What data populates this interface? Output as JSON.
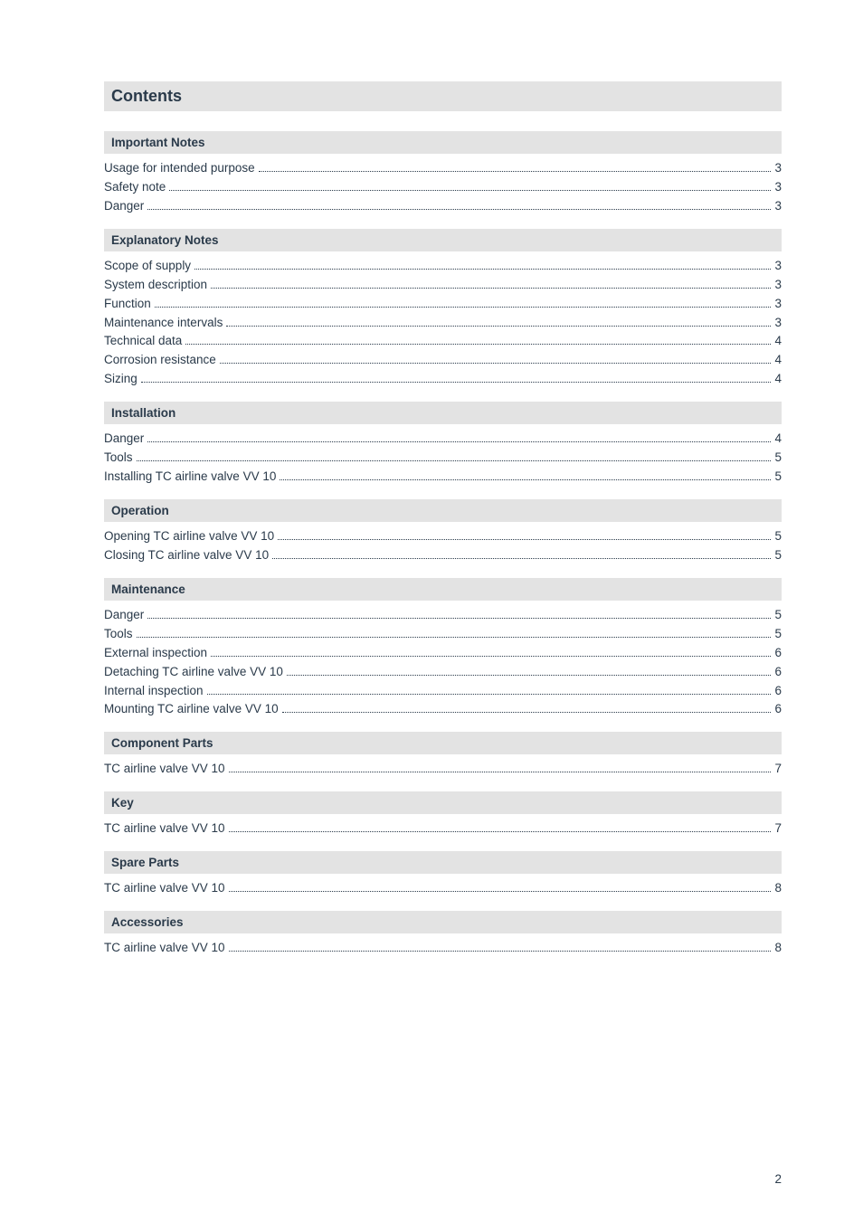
{
  "page": {
    "title": "Contents",
    "pageNumber": "2"
  },
  "theme": {
    "sectionHeaderBg": "#e3e3e3",
    "titleBg": "#e3e3e3",
    "textColor": "#2a3a4a",
    "fontSizeBody": 13.5,
    "fontSizeTitle": 18,
    "lineHeight": 1.55
  },
  "sections": [
    {
      "title": "Important Notes",
      "entries": [
        {
          "label": "Usage for intended purpose",
          "page": "3"
        },
        {
          "label": "Safety note",
          "page": "3"
        },
        {
          "label": "Danger",
          "page": "3"
        }
      ]
    },
    {
      "title": "Explanatory Notes",
      "entries": [
        {
          "label": "Scope of supply",
          "page": "3"
        },
        {
          "label": "System description",
          "page": "3"
        },
        {
          "label": "Function",
          "page": "3"
        },
        {
          "label": "Maintenance intervals",
          "page": "3"
        },
        {
          "label": "Technical data",
          "page": "4"
        },
        {
          "label": "Corrosion resistance",
          "page": "4"
        },
        {
          "label": "Sizing",
          "page": "4"
        }
      ]
    },
    {
      "title": "Installation",
      "entries": [
        {
          "label": "Danger",
          "page": "4"
        },
        {
          "label": "Tools",
          "page": "5"
        },
        {
          "label": "Installing TC airline valve VV 10",
          "page": "5"
        }
      ]
    },
    {
      "title": "Operation",
      "entries": [
        {
          "label": "Opening TC airline valve VV 10",
          "page": "5"
        },
        {
          "label": "Closing TC airline valve VV 10",
          "page": "5"
        }
      ]
    },
    {
      "title": "Maintenance",
      "entries": [
        {
          "label": "Danger",
          "page": "5"
        },
        {
          "label": "Tools",
          "page": "5"
        },
        {
          "label": "External inspection",
          "page": "6"
        },
        {
          "label": "Detaching TC airline valve VV 10",
          "page": "6"
        },
        {
          "label": "Internal inspection",
          "page": "6"
        },
        {
          "label": "Mounting TC airline valve VV 10",
          "page": "6"
        }
      ]
    },
    {
      "title": "Component Parts",
      "entries": [
        {
          "label": "TC airline valve VV 10",
          "page": "7"
        }
      ]
    },
    {
      "title": "Key",
      "entries": [
        {
          "label": "TC airline valve VV 10",
          "page": "7"
        }
      ]
    },
    {
      "title": "Spare Parts",
      "entries": [
        {
          "label": "TC airline valve VV 10",
          "page": "8"
        }
      ]
    },
    {
      "title": "Accessories",
      "entries": [
        {
          "label": "TC airline valve VV 10",
          "page": "8"
        }
      ]
    }
  ]
}
